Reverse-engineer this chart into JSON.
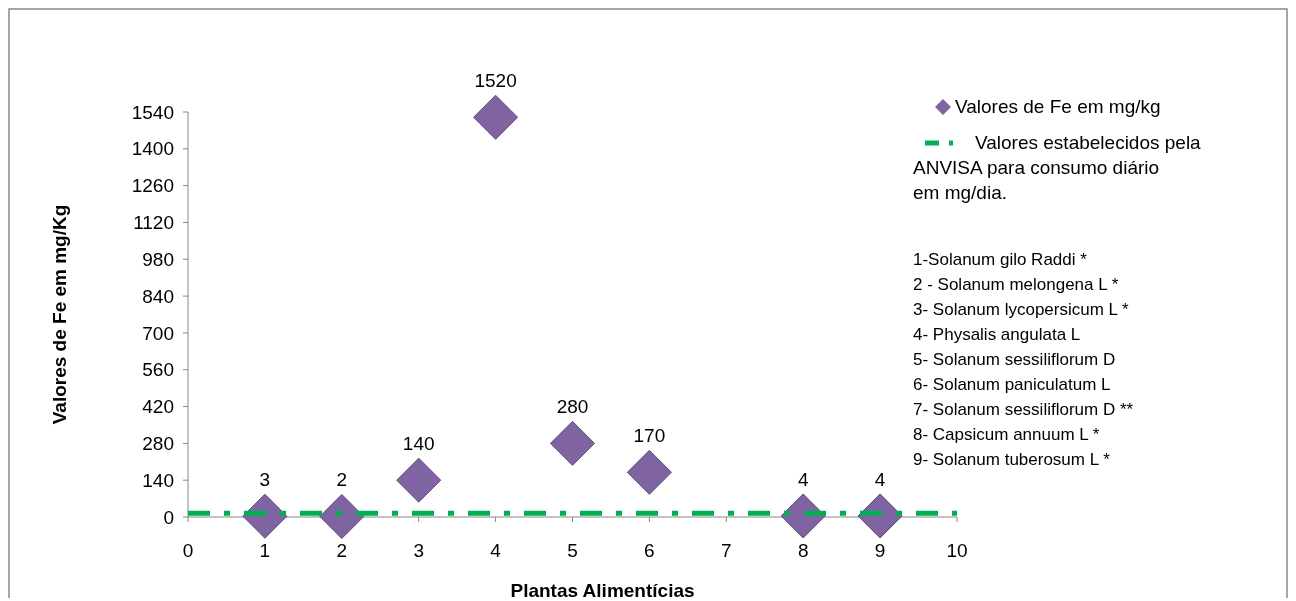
{
  "chart_data": {
    "type": "scatter",
    "xlabel": "Plantas Alimentícias",
    "ylabel": "Valores de Fe em mg/Kg",
    "xlim": [
      0,
      10
    ],
    "xticks": [
      0,
      1,
      2,
      3,
      4,
      5,
      6,
      7,
      8,
      9,
      10
    ],
    "ylim": [
      0,
      1540
    ],
    "yticks": [
      0,
      140,
      280,
      420,
      560,
      700,
      840,
      980,
      1120,
      1260,
      1400,
      1540
    ],
    "grid": false,
    "legend": "right",
    "series": [
      {
        "name": "Valores de Fe em mg/kg",
        "color": "#8064a2",
        "x": [
          1,
          2,
          3,
          4,
          5,
          6,
          8,
          9
        ],
        "values": [
          3,
          2,
          140,
          1520,
          280,
          170,
          4,
          4
        ],
        "marker": "diamond",
        "value_labels": [
          "3",
          "2",
          "140",
          "1520",
          "280",
          "170",
          "4",
          "4"
        ]
      },
      {
        "name": "Valores estabelecidos pela ANVISA para consumo diário em mg/dia.",
        "type": "line",
        "line_style": "dashed",
        "color": "#00b050",
        "x": [
          0,
          10
        ],
        "values": [
          14,
          14
        ]
      }
    ],
    "annotations": [
      "1-Solanum gilo Raddi *",
      "2 - Solanum melongena L *",
      "3- Solanum lycopersicum L *",
      "4- Physalis angulata L",
      "5- Solanum sessiliflorum D",
      "6- Solanum paniculatum L",
      "7- Solanum sessiliflorum D **",
      "8- Capsicum annuum L *",
      "9- Solanum tuberosum L *"
    ]
  }
}
